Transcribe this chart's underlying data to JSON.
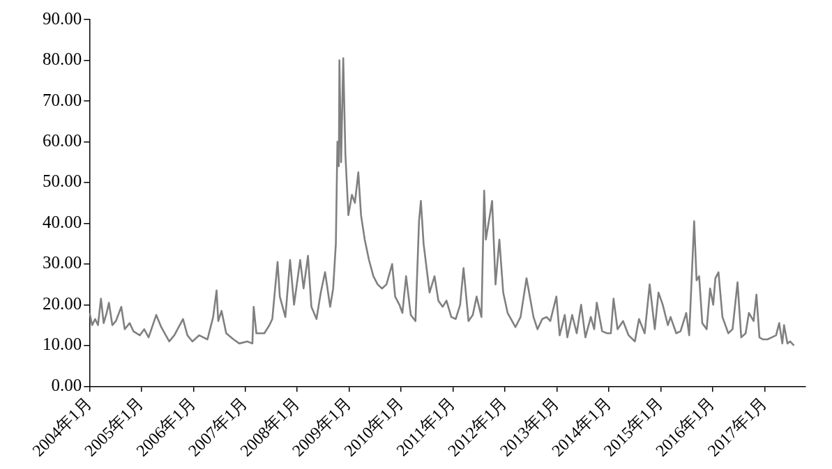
{
  "chart_data": {
    "type": "line",
    "x": [
      "2004-01-02",
      "2004-01-20",
      "2004-02-10",
      "2004-03-01",
      "2004-03-22",
      "2004-04-10",
      "2004-05-01",
      "2004-05-17",
      "2004-06-10",
      "2004-07-05",
      "2004-08-12",
      "2004-09-05",
      "2004-10-10",
      "2004-11-05",
      "2004-12-20",
      "2005-01-20",
      "2005-02-20",
      "2005-04-15",
      "2005-05-20",
      "2005-07-15",
      "2005-08-20",
      "2005-10-20",
      "2005-11-20",
      "2005-12-25",
      "2006-02-10",
      "2006-04-10",
      "2006-05-20",
      "2006-06-13",
      "2006-06-25",
      "2006-07-18",
      "2006-08-20",
      "2006-10-10",
      "2006-11-20",
      "2007-01-15",
      "2007-02-20",
      "2007-03-01",
      "2007-03-20",
      "2007-05-15",
      "2007-06-20",
      "2007-07-10",
      "2007-08-16",
      "2007-09-01",
      "2007-10-10",
      "2007-11-12",
      "2007-12-10",
      "2008-01-22",
      "2008-02-15",
      "2008-03-17",
      "2008-04-10",
      "2008-05-16",
      "2008-06-15",
      "2008-07-15",
      "2008-08-20",
      "2008-09-10",
      "2008-09-29",
      "2008-10-10",
      "2008-10-20",
      "2008-10-24",
      "2008-11-05",
      "2008-11-20",
      "2008-12-05",
      "2008-12-26",
      "2009-01-20",
      "2009-02-10",
      "2009-03-06",
      "2009-03-25",
      "2009-04-20",
      "2009-05-20",
      "2009-06-20",
      "2009-07-20",
      "2009-08-20",
      "2009-09-20",
      "2009-10-30",
      "2009-11-20",
      "2009-12-20",
      "2010-01-10",
      "2010-02-05",
      "2010-03-10",
      "2010-04-12",
      "2010-05-07",
      "2010-05-20",
      "2010-06-08",
      "2010-07-20",
      "2010-08-24",
      "2010-09-20",
      "2010-10-20",
      "2010-11-16",
      "2010-12-20",
      "2011-01-20",
      "2011-02-20",
      "2011-03-16",
      "2011-04-20",
      "2011-05-20",
      "2011-06-16",
      "2011-07-20",
      "2011-08-08",
      "2011-08-20",
      "2011-09-22",
      "2011-10-03",
      "2011-10-27",
      "2011-11-23",
      "2011-12-20",
      "2012-01-20",
      "2012-03-15",
      "2012-04-20",
      "2012-06-01",
      "2012-07-20",
      "2012-08-17",
      "2012-09-20",
      "2012-10-20",
      "2012-11-15",
      "2012-12-28",
      "2013-01-20",
      "2013-02-25",
      "2013-03-15",
      "2013-04-18",
      "2013-05-20",
      "2013-06-20",
      "2013-07-20",
      "2013-08-27",
      "2013-09-20",
      "2013-10-08",
      "2013-11-15",
      "2013-12-20",
      "2014-01-15",
      "2014-02-03",
      "2014-03-03",
      "2014-04-11",
      "2014-05-20",
      "2014-07-03",
      "2014-08-01",
      "2014-09-10",
      "2014-10-15",
      "2014-11-20",
      "2014-12-16",
      "2015-01-15",
      "2015-02-20",
      "2015-03-11",
      "2015-04-20",
      "2015-05-20",
      "2015-06-29",
      "2015-07-20",
      "2015-08-24",
      "2015-09-10",
      "2015-09-28",
      "2015-10-20",
      "2015-11-20",
      "2015-12-14",
      "2016-01-05",
      "2016-01-20",
      "2016-02-11",
      "2016-03-10",
      "2016-04-20",
      "2016-05-20",
      "2016-06-24",
      "2016-07-20",
      "2016-08-20",
      "2016-09-12",
      "2016-10-15",
      "2016-11-04",
      "2016-11-25",
      "2016-12-20",
      "2017-01-20",
      "2017-02-20",
      "2017-03-22",
      "2017-04-13",
      "2017-05-05",
      "2017-05-17",
      "2017-06-10",
      "2017-06-29",
      "2017-07-26"
    ],
    "series": [
      {
        "color": "#808080",
        "values": [
          18,
          15,
          16.5,
          15,
          21.5,
          15.5,
          18,
          20.5,
          15,
          16,
          19.5,
          14,
          15.5,
          13.5,
          12.5,
          14,
          12,
          17.5,
          14.5,
          11,
          12.5,
          16.5,
          12.5,
          11,
          12.5,
          11.5,
          17,
          23.5,
          16,
          18.5,
          13,
          11.5,
          10.5,
          11,
          10.5,
          19.5,
          13,
          13,
          15,
          16.5,
          30.5,
          22,
          17,
          31,
          20,
          31,
          24,
          32,
          19.5,
          16.5,
          23,
          28,
          19.5,
          24,
          35,
          60,
          54,
          80,
          55,
          80.5,
          57,
          42,
          47,
          45,
          52.5,
          42,
          36,
          31,
          27,
          25,
          24,
          25,
          30,
          22,
          20,
          18,
          27,
          17.5,
          16,
          40.5,
          45.5,
          35,
          23,
          27,
          21,
          19.5,
          21,
          17,
          16.5,
          20,
          29,
          16,
          17.5,
          22,
          17,
          48,
          36,
          43,
          45.5,
          25,
          36,
          23,
          18,
          14.5,
          17,
          26.5,
          17,
          14,
          16.5,
          17,
          16,
          22,
          12.5,
          17.5,
          12,
          17.5,
          13,
          20,
          12,
          17,
          14,
          20.5,
          13.5,
          13,
          13,
          21.5,
          14,
          16,
          12.5,
          11,
          16.5,
          13,
          25,
          14,
          23,
          20,
          15,
          17,
          13,
          13.5,
          18,
          12.5,
          40.5,
          26,
          27,
          15.5,
          14,
          24,
          20,
          26.5,
          28,
          17,
          13,
          14,
          25.5,
          12,
          13,
          18,
          16,
          22.5,
          12,
          11.5,
          11.5,
          12,
          12.5,
          15.5,
          10.5,
          15,
          10.5,
          11,
          10
        ]
      }
    ],
    "xlim": [
      "2004-01-01",
      "2017-10-15"
    ],
    "xticks": [
      {
        "value": "2004-01-01",
        "label": "2004年1月"
      },
      {
        "value": "2005-01-01",
        "label": "2005年1月"
      },
      {
        "value": "2006-01-01",
        "label": "2006年1月"
      },
      {
        "value": "2007-01-01",
        "label": "2007年1月"
      },
      {
        "value": "2008-01-01",
        "label": "2008年1月"
      },
      {
        "value": "2009-01-01",
        "label": "2009年1月"
      },
      {
        "value": "2010-01-01",
        "label": "2010年1月"
      },
      {
        "value": "2011-01-01",
        "label": "2011年1月"
      },
      {
        "value": "2012-01-01",
        "label": "2012年1月"
      },
      {
        "value": "2013-01-01",
        "label": "2013年1月"
      },
      {
        "value": "2014-01-01",
        "label": "2014年1月"
      },
      {
        "value": "2015-01-01",
        "label": "2015年1月"
      },
      {
        "value": "2016-01-01",
        "label": "2016年1月"
      },
      {
        "value": "2017-01-01",
        "label": "2017年1月"
      }
    ],
    "ylim": [
      0,
      90
    ],
    "yticks": [
      {
        "value": 0,
        "label": "0.00"
      },
      {
        "value": 10,
        "label": "10.00"
      },
      {
        "value": 20,
        "label": "20.00"
      },
      {
        "value": 30,
        "label": "30.00"
      },
      {
        "value": 40,
        "label": "40.00"
      },
      {
        "value": 50,
        "label": "50.00"
      },
      {
        "value": 60,
        "label": "60.00"
      },
      {
        "value": 70,
        "label": "70.00"
      },
      {
        "value": 80,
        "label": "80.00"
      },
      {
        "value": 90,
        "label": "90.00"
      }
    ],
    "grid": false,
    "legend": false,
    "marker": "none",
    "line_style": "solid"
  }
}
